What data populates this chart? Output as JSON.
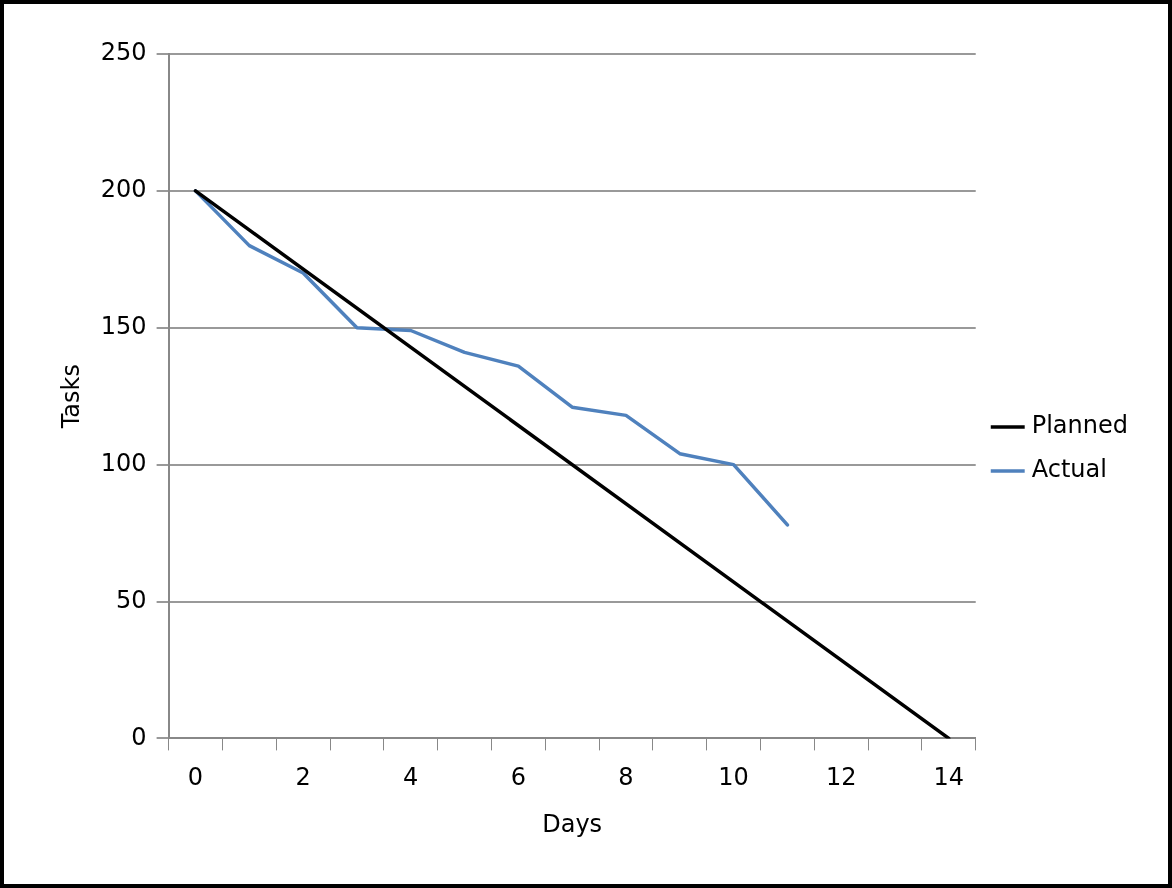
{
  "chart_data": {
    "type": "line",
    "xlabel": "Days",
    "ylabel": "Tasks",
    "xlim": [
      -0.5,
      14.5
    ],
    "xticks": [
      {
        "value": -0.5,
        "label": null
      },
      0,
      {
        "value": 0.5,
        "label": null
      },
      {
        "value": 1.5,
        "label": null
      },
      2,
      {
        "value": 2.5,
        "label": null
      },
      {
        "value": 3.5,
        "label": null
      },
      4,
      {
        "value": 4.5,
        "label": null
      },
      {
        "value": 5.5,
        "label": null
      },
      6,
      {
        "value": 6.5,
        "label": null
      },
      {
        "value": 7.5,
        "label": null
      },
      8,
      {
        "value": 8.5,
        "label": null
      },
      {
        "value": 9.5,
        "label": null
      },
      10,
      {
        "value": 10.5,
        "label": null
      },
      {
        "value": 11.5,
        "label": null
      },
      12,
      {
        "value": 12.5,
        "label": null
      },
      {
        "value": 13.5,
        "label": null
      },
      14,
      {
        "value": 14.5,
        "label": null
      }
    ],
    "ylim": [
      0,
      250
    ],
    "yticks": [
      0,
      50,
      100,
      150,
      200,
      250
    ],
    "grid": "y",
    "legend": "right",
    "marker": "none",
    "line_style": "solid",
    "series": [
      {
        "name": "Planned",
        "color": "#000000",
        "x": [
          0,
          14
        ],
        "values": [
          200,
          0
        ]
      },
      {
        "name": "Actual",
        "color": "#4f81bd",
        "x": [
          0,
          1,
          2,
          3,
          4,
          5,
          6,
          7,
          8,
          9,
          10,
          11
        ],
        "values": [
          200,
          180,
          170,
          150,
          149,
          141,
          136,
          121,
          118,
          104,
          100,
          78
        ]
      }
    ]
  }
}
